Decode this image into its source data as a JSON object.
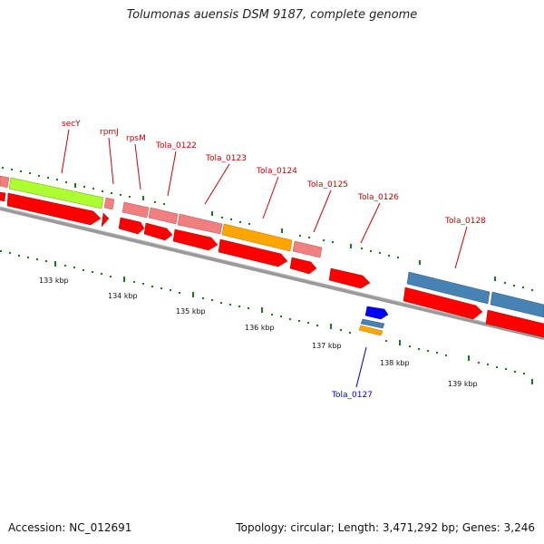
{
  "title": "Tolumonas auensis DSM 9187, complete genome",
  "footer": {
    "accession": "Accession: NC_012691",
    "topology": "Topology: circular; Length: 3,471,292 bp; Genes: 3,246"
  },
  "colors": {
    "backbone": "#8c8c8c",
    "tick": "#1a7a1a",
    "label_red": "#cc0000",
    "label_blue": "#0000cc",
    "cds_red": "#ff0000",
    "gene_pink": "#f08080",
    "gene_green": "#adff2f",
    "gene_orange": "#ffa500",
    "gene_steelblue": "#4682b4",
    "gene_blue": "#0000ff"
  },
  "kbp_labels": [
    "133 kbp",
    "134 kbp",
    "135 kbp",
    "136 kbp",
    "137 kbp",
    "138 kbp",
    "139 kbp"
  ],
  "gene_labels": [
    "secY",
    "rpmJ",
    "rpsM",
    "Tola_0122",
    "Tola_0123",
    "Tola_0124",
    "Tola_0125",
    "Tola_0126",
    "Tola_0127",
    "Tola_0128"
  ]
}
